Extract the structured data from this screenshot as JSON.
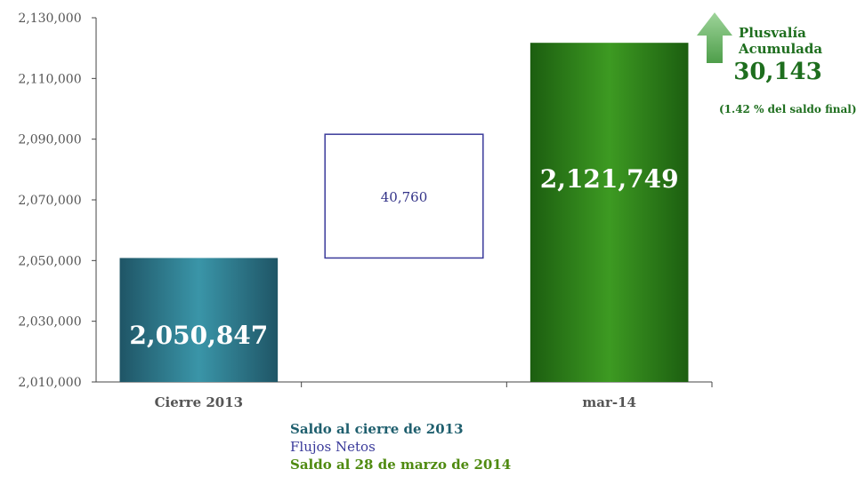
{
  "chart_data": {
    "type": "bar",
    "subtype": "waterfall",
    "categories": [
      "Cierre 2013",
      "",
      "mar-14"
    ],
    "ylim": [
      2010000,
      2130000
    ],
    "yticks": [
      2010000,
      2030000,
      2050000,
      2070000,
      2090000,
      2110000,
      2130000
    ],
    "ytick_labels": [
      "2,010,000",
      "2,030,000",
      "2,050,000",
      "2,070,000",
      "2,090,000",
      "2,110,000",
      "2,130,000"
    ],
    "bars": [
      {
        "label": "2,050,847",
        "start": 2010000,
        "end": 2050847,
        "color": "#2e7f8f",
        "style": "solid"
      },
      {
        "label": "40,760",
        "start": 2050847,
        "end": 2091607,
        "color": "#3a3a9a",
        "style": "outline"
      },
      {
        "label": "2,121,749",
        "start": 2010000,
        "end": 2121749,
        "color": "#2e7d1c",
        "style": "solid"
      }
    ],
    "legend": [
      {
        "label": "Saldo al cierre de 2013",
        "color": "#1f5f6e"
      },
      {
        "label": "Flujos Netos",
        "color": "#3a3a9a"
      },
      {
        "label": "Saldo al 28 de marzo de 2014",
        "color": "#4f8a10"
      }
    ],
    "annotation": {
      "title_line1": "Plusvalía",
      "title_line2": "Acumulada",
      "value": "30,143",
      "note": "(1.42 % del saldo final)",
      "color": "#1e6e1e",
      "icon": "up-arrow-icon"
    }
  }
}
